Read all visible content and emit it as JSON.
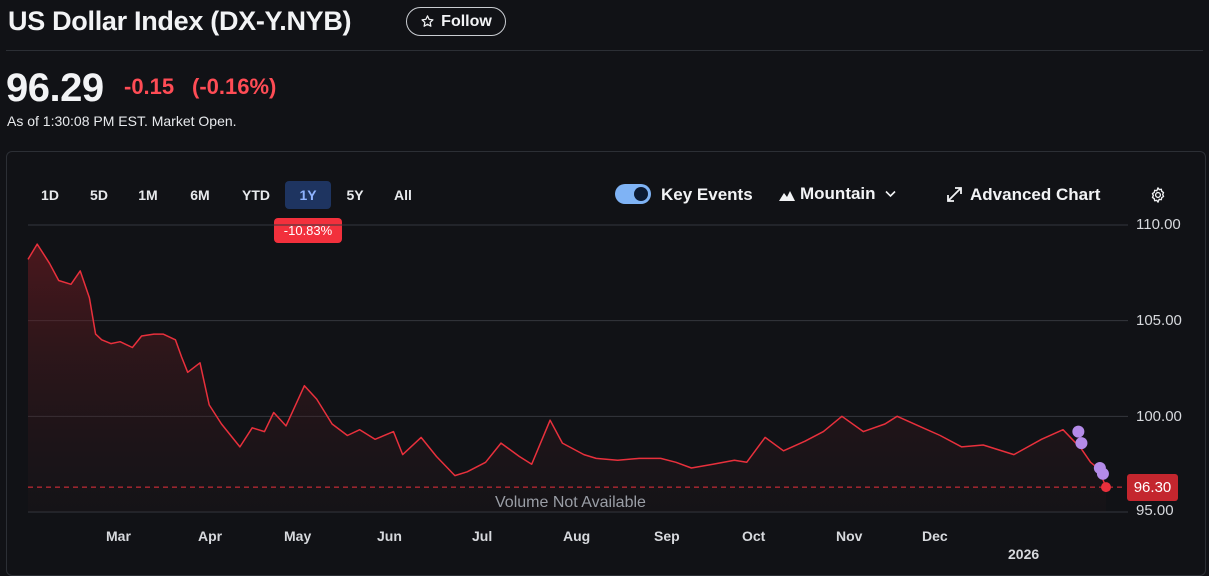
{
  "header": {
    "title": "US Dollar Index (DX-Y.NYB)",
    "follow_label": "Follow",
    "price": "96.29",
    "change": "-0.15",
    "change_pct": "(-0.16%)",
    "as_of": "As of 1:30:08 PM EST. Market Open."
  },
  "toolbar": {
    "ranges": [
      "1D",
      "5D",
      "1M",
      "6M",
      "YTD",
      "1Y",
      "5Y",
      "All"
    ],
    "active_range": "1Y",
    "range_change": "-10.83%",
    "key_events_label": "Key Events",
    "key_events_on": true,
    "mountain_label": "Mountain",
    "advanced_label": "Advanced Chart"
  },
  "colors": {
    "line": "#e8303c",
    "negative": "#ff4c55",
    "accent_active": "#8fb3ff",
    "event_dot": "#b48be8"
  },
  "chart_data": {
    "type": "area",
    "ylim": [
      95,
      110
    ],
    "y_ticks": [
      "110.00",
      "105.00",
      "100.00",
      "95.00"
    ],
    "x_tick_labels": [
      "Mar",
      "Apr",
      "May",
      "Jun",
      "Jul",
      "Aug",
      "Sep",
      "Oct",
      "Nov",
      "Dec"
    ],
    "year_label": "2026",
    "current_value_label": "96.30",
    "current_value": 96.3,
    "volume_note": "Volume Not Available",
    "grid": true,
    "x": [
      "2025-02-11",
      "2025-02-14",
      "2025-02-18",
      "2025-02-21",
      "2025-02-25",
      "2025-02-28",
      "2025-03-03",
      "2025-03-05",
      "2025-03-07",
      "2025-03-10",
      "2025-03-13",
      "2025-03-17",
      "2025-03-20",
      "2025-03-24",
      "2025-03-27",
      "2025-03-31",
      "2025-04-02",
      "2025-04-04",
      "2025-04-08",
      "2025-04-11",
      "2025-04-15",
      "2025-04-21",
      "2025-04-25",
      "2025-04-29",
      "2025-05-02",
      "2025-05-06",
      "2025-05-12",
      "2025-05-16",
      "2025-05-21",
      "2025-05-26",
      "2025-05-30",
      "2025-06-04",
      "2025-06-10",
      "2025-06-13",
      "2025-06-19",
      "2025-06-24",
      "2025-06-30",
      "2025-07-04",
      "2025-07-10",
      "2025-07-15",
      "2025-07-21",
      "2025-07-25",
      "2025-07-31",
      "2025-08-04",
      "2025-08-11",
      "2025-08-15",
      "2025-08-22",
      "2025-08-29",
      "2025-09-05",
      "2025-09-10",
      "2025-09-15",
      "2025-09-22",
      "2025-09-29",
      "2025-10-03",
      "2025-10-09",
      "2025-10-15",
      "2025-10-22",
      "2025-10-28",
      "2025-11-03",
      "2025-11-10",
      "2025-11-17",
      "2025-11-21",
      "2025-11-28",
      "2025-12-05",
      "2025-12-12",
      "2025-12-19",
      "2025-12-29",
      "2026-01-07",
      "2026-01-14",
      "2026-01-20",
      "2026-01-23",
      "2026-01-26",
      "2026-01-27",
      "2026-01-28"
    ],
    "series": [
      {
        "values": [
          108.2,
          109.0,
          108.0,
          107.1,
          106.9,
          107.6,
          106.2,
          104.3,
          104.0,
          103.8,
          103.9,
          103.6,
          104.2,
          104.3,
          104.3,
          104.0,
          103.1,
          102.3,
          102.8,
          100.6,
          99.6,
          98.4,
          99.4,
          99.2,
          100.2,
          99.5,
          101.6,
          100.9,
          99.6,
          99.0,
          99.3,
          98.8,
          99.2,
          98.0,
          98.9,
          97.9,
          96.9,
          97.1,
          97.6,
          98.6,
          97.9,
          97.5,
          99.8,
          98.6,
          98.0,
          97.8,
          97.7,
          97.8,
          97.8,
          97.6,
          97.3,
          97.5,
          97.7,
          97.6,
          98.9,
          98.2,
          98.7,
          99.2,
          100.0,
          99.2,
          99.6,
          100.0,
          99.5,
          99.0,
          98.4,
          98.5,
          98.0,
          98.8,
          99.3,
          98.3,
          97.6,
          97.2,
          96.7,
          96.3
        ]
      }
    ],
    "key_events": [
      {
        "x": "2026-01-19",
        "y": 99.2
      },
      {
        "x": "2026-01-20",
        "y": 98.6
      },
      {
        "x": "2026-01-26",
        "y": 97.3
      },
      {
        "x": "2026-01-27",
        "y": 97.0
      }
    ]
  }
}
